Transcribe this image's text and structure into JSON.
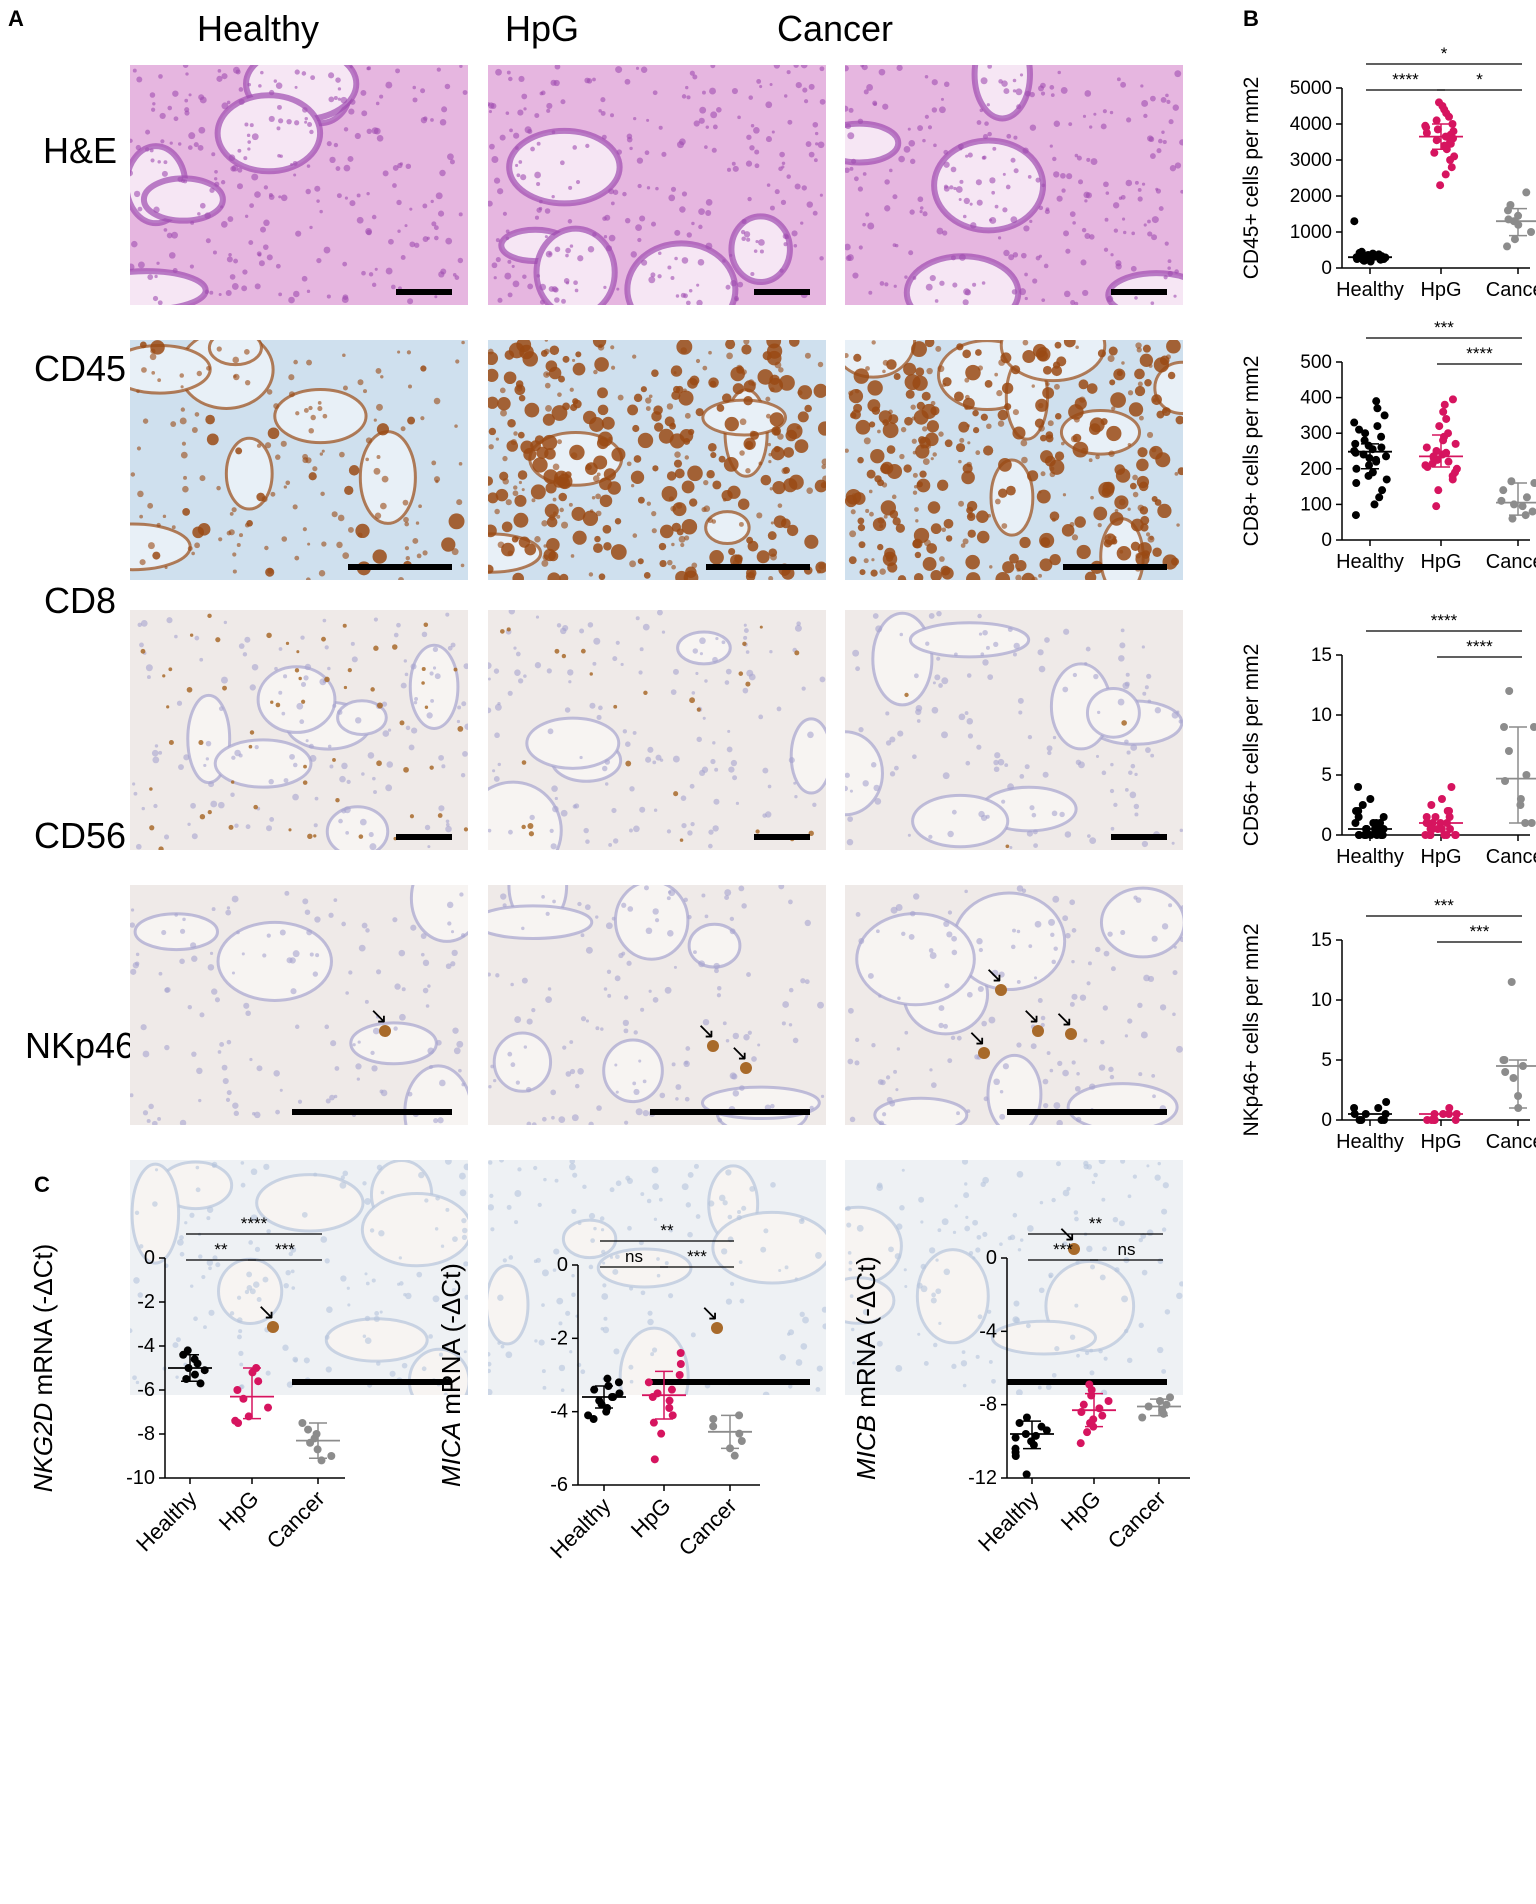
{
  "panel_labels": [
    "A",
    "B",
    "C"
  ],
  "panel_a": {
    "columns": [
      "Healthy",
      "HpG",
      "Cancer"
    ],
    "rows": [
      "H&E",
      "CD45",
      "CD8",
      "CD56",
      "NKp46"
    ]
  },
  "colors": {
    "healthy": "#000000",
    "hpg": "#d6145f",
    "cancer": "#8c8c8c",
    "he_bg": "#e6b6e0",
    "he_tissue": "#a04cb0",
    "cd45_bg": "#cfe0ee",
    "cd45_stain": "#9a4a14",
    "ihc_bg": "#efeae8",
    "ihc_nuclei": "#a7a4cf",
    "ihc_brown": "#a86a2a"
  },
  "chart_data": [
    {
      "id": "cd45",
      "type": "scatter",
      "ylabel": "CD45+ cells per mm2",
      "categories": [
        "Healthy",
        "HpG",
        "Cancer"
      ],
      "yticks": [
        0,
        1000,
        2000,
        3000,
        4000,
        5000
      ],
      "ylim": [
        0,
        5000
      ],
      "series": [
        {
          "name": "Healthy",
          "values": [
            320,
            250,
            280,
            300,
            350,
            380,
            420,
            200,
            240,
            260,
            310,
            330,
            290,
            180,
            220,
            270,
            360,
            400,
            450,
            230,
            250,
            300,
            1300,
            280
          ],
          "median": 300
        },
        {
          "name": "HpG",
          "values": [
            4600,
            4500,
            4400,
            4300,
            4200,
            4100,
            4000,
            3950,
            3900,
            3850,
            3800,
            3750,
            3700,
            3650,
            3600,
            3550,
            3500,
            3450,
            3400,
            3300,
            3200,
            3100,
            3000,
            2800,
            2600,
            2300
          ],
          "median": 3650,
          "range": [
            3300,
            4000
          ]
        },
        {
          "name": "Cancer",
          "values": [
            2100,
            1750,
            1600,
            1450,
            1350,
            1300,
            1200,
            1000,
            800,
            600
          ],
          "median": 1300,
          "range": [
            900,
            1650
          ]
        }
      ],
      "significance": [
        {
          "from": "Healthy",
          "to": "Cancer",
          "label": "*"
        },
        {
          "from": "Healthy",
          "to": "HpG",
          "label": "****"
        },
        {
          "from": "HpG",
          "to": "Cancer",
          "label": "*"
        }
      ]
    },
    {
      "id": "cd8",
      "type": "scatter",
      "ylabel": "CD8+ cells per mm2",
      "categories": [
        "Healthy",
        "HpG",
        "Cancer"
      ],
      "yticks": [
        0,
        100,
        200,
        300,
        400,
        500
      ],
      "ylim": [
        0,
        500
      ],
      "series": [
        {
          "name": "Healthy",
          "values": [
            390,
            370,
            350,
            330,
            320,
            310,
            300,
            290,
            280,
            270,
            265,
            260,
            255,
            250,
            245,
            240,
            235,
            230,
            225,
            220,
            210,
            200,
            190,
            180,
            170,
            160,
            140,
            120,
            100,
            70
          ],
          "median": 248,
          "range": [
            200,
            270
          ]
        },
        {
          "name": "HpG",
          "values": [
            395,
            380,
            360,
            340,
            320,
            300,
            290,
            280,
            270,
            260,
            250,
            245,
            240,
            235,
            230,
            225,
            220,
            215,
            210,
            205,
            200,
            190,
            180,
            170,
            140,
            95
          ],
          "median": 235,
          "range": [
            205,
            295
          ]
        },
        {
          "name": "Cancer",
          "values": [
            165,
            160,
            140,
            120,
            110,
            100,
            95,
            80,
            70,
            60
          ],
          "median": 105,
          "range": [
            70,
            160
          ]
        }
      ],
      "significance": [
        {
          "from": "Healthy",
          "to": "Cancer",
          "label": "***"
        },
        {
          "from": "HpG",
          "to": "Cancer",
          "label": "****"
        }
      ]
    },
    {
      "id": "cd56",
      "type": "scatter",
      "ylabel": "CD56+ cells per mm2",
      "categories": [
        "Healthy",
        "HpG",
        "Cancer"
      ],
      "yticks": [
        0,
        5,
        10,
        15
      ],
      "ylim": [
        0,
        15
      ],
      "series": [
        {
          "name": "Healthy",
          "values": [
            4,
            3,
            2.5,
            2,
            2,
            1.5,
            1.5,
            1,
            1,
            1,
            1,
            0.5,
            0.5,
            0.5,
            0.5,
            0.5,
            0.5,
            0,
            0,
            0,
            0,
            0,
            0,
            0,
            0,
            0
          ],
          "median": 0.5
        },
        {
          "name": "HpG",
          "values": [
            4,
            3,
            2.5,
            2,
            2,
            1.5,
            1.5,
            1.5,
            1,
            1,
            1,
            1,
            1,
            0.5,
            0.5,
            0.5,
            0.5,
            0.5,
            0,
            0,
            0,
            0,
            0,
            0,
            0,
            0
          ],
          "median": 1
        },
        {
          "name": "Cancer",
          "values": [
            12,
            9,
            9,
            7,
            5,
            4.5,
            3,
            2.5,
            1,
            1
          ],
          "median": 4.7,
          "range": [
            1,
            9
          ]
        }
      ],
      "significance": [
        {
          "from": "Healthy",
          "to": "Cancer",
          "label": "****"
        },
        {
          "from": "HpG",
          "to": "Cancer",
          "label": "****"
        }
      ]
    },
    {
      "id": "nkp46",
      "type": "scatter",
      "ylabel": "NKp46+ cells per mm2",
      "categories": [
        "Healthy",
        "HpG",
        "Cancer"
      ],
      "yticks": [
        0,
        5,
        10,
        15
      ],
      "ylim": [
        0,
        15
      ],
      "series": [
        {
          "name": "Healthy",
          "values": [
            1.5,
            1,
            1,
            0.5,
            0.5,
            0.5,
            0,
            0,
            0,
            0
          ],
          "median": 0.5
        },
        {
          "name": "HpG",
          "values": [
            1,
            0.5,
            0.5,
            0.5,
            0.5,
            0,
            0,
            0,
            0,
            0
          ],
          "median": 0.5
        },
        {
          "name": "Cancer",
          "values": [
            11.5,
            5,
            5,
            4.5,
            4,
            3.5,
            2,
            1
          ],
          "median": 4.5,
          "range": [
            1,
            5
          ]
        }
      ],
      "significance": [
        {
          "from": "Healthy",
          "to": "Cancer",
          "label": "***"
        },
        {
          "from": "HpG",
          "to": "Cancer",
          "label": "***"
        }
      ]
    },
    {
      "id": "nkg2d",
      "type": "scatter",
      "ylabel_italic": "NKG2D",
      "ylabel_rest": " mRNA (-ΔCt)",
      "categories": [
        "Healthy",
        "HpG",
        "Cancer"
      ],
      "yticks": [
        0,
        -2,
        -4,
        -6,
        -8,
        -10
      ],
      "ylim": [
        -10,
        0
      ],
      "series": [
        {
          "name": "Healthy",
          "values": [
            -4.2,
            -4.4,
            -4.6,
            -4.8,
            -5.0,
            -5.1,
            -5.3,
            -5.5,
            -5.7
          ],
          "median": -5.0,
          "range": [
            -5.6,
            -4.4
          ]
        },
        {
          "name": "HpG",
          "values": [
            -5.0,
            -5.2,
            -5.6,
            -6.0,
            -6.4,
            -6.8,
            -7.2,
            -7.4,
            -7.5
          ],
          "median": -6.3,
          "range": [
            -7.3,
            -5.0
          ]
        },
        {
          "name": "Cancer",
          "values": [
            -7.5,
            -7.8,
            -8.0,
            -8.2,
            -8.4,
            -8.7,
            -9.0,
            -9.2
          ],
          "median": -8.3,
          "range": [
            -9.1,
            -7.5
          ]
        }
      ],
      "significance": [
        {
          "from": "Healthy",
          "to": "Cancer",
          "label": "****"
        },
        {
          "from": "Healthy",
          "to": "HpG",
          "label": "**"
        },
        {
          "from": "HpG",
          "to": "Cancer",
          "label": "***"
        }
      ]
    },
    {
      "id": "mica",
      "type": "scatter",
      "ylabel_italic": "MICA",
      "ylabel_rest": " mRNA (-ΔCt)",
      "categories": [
        "Healthy",
        "HpG",
        "Cancer"
      ],
      "yticks": [
        0,
        -2,
        -4,
        -6
      ],
      "ylim": [
        -6,
        0
      ],
      "series": [
        {
          "name": "Healthy",
          "values": [
            -3.1,
            -3.2,
            -3.3,
            -3.4,
            -3.5,
            -3.6,
            -3.6,
            -3.7,
            -3.8,
            -3.9,
            -4.0,
            -4.1,
            -4.2
          ],
          "median": -3.6,
          "range": [
            -3.9,
            -3.3
          ]
        },
        {
          "name": "HpG",
          "values": [
            -2.4,
            -2.7,
            -3.0,
            -3.2,
            -3.4,
            -3.5,
            -3.6,
            -3.7,
            -3.9,
            -4.1,
            -4.3,
            -4.6,
            -5.3
          ],
          "median": -3.55,
          "range": [
            -4.2,
            -2.9
          ]
        },
        {
          "name": "Cancer",
          "values": [
            -4.1,
            -4.2,
            -4.4,
            -4.6,
            -4.8,
            -5.0,
            -5.2
          ],
          "median": -4.55,
          "range": [
            -5.0,
            -4.1
          ]
        }
      ],
      "significance": [
        {
          "from": "Healthy",
          "to": "Cancer",
          "label": "**"
        },
        {
          "from": "Healthy",
          "to": "HpG",
          "label": "ns"
        },
        {
          "from": "HpG",
          "to": "Cancer",
          "label": "***"
        }
      ]
    },
    {
      "id": "micb",
      "type": "scatter",
      "ylabel_italic": "MICB",
      "ylabel_rest": " mRNA (-ΔCt)",
      "categories": [
        "Healthy",
        "HpG",
        "Cancer"
      ],
      "yticks": [
        0,
        -4,
        -8,
        -12
      ],
      "ylim": [
        -12,
        0
      ],
      "series": [
        {
          "name": "Healthy",
          "values": [
            -8.7,
            -9.0,
            -9.2,
            -9.4,
            -9.6,
            -9.7,
            -9.8,
            -10.0,
            -10.2,
            -10.4,
            -10.6,
            -10.8,
            -11.8
          ],
          "median": -9.6,
          "range": [
            -10.4,
            -8.9
          ]
        },
        {
          "name": "HpG",
          "values": [
            -6.9,
            -7.2,
            -7.5,
            -7.8,
            -8.0,
            -8.2,
            -8.4,
            -8.6,
            -8.8,
            -9.0,
            -9.2,
            -9.5,
            -10.1
          ],
          "median": -8.3,
          "range": [
            -9.2,
            -7.4
          ]
        },
        {
          "name": "Cancer",
          "values": [
            -7.6,
            -7.8,
            -8.0,
            -8.1,
            -8.3,
            -8.5,
            -8.7
          ],
          "median": -8.1,
          "range": [
            -8.6,
            -7.7
          ]
        }
      ],
      "significance": [
        {
          "from": "Healthy",
          "to": "Cancer",
          "label": "**"
        },
        {
          "from": "Healthy",
          "to": "HpG",
          "label": "***"
        },
        {
          "from": "HpG",
          "to": "Cancer",
          "label": "ns"
        }
      ]
    }
  ]
}
